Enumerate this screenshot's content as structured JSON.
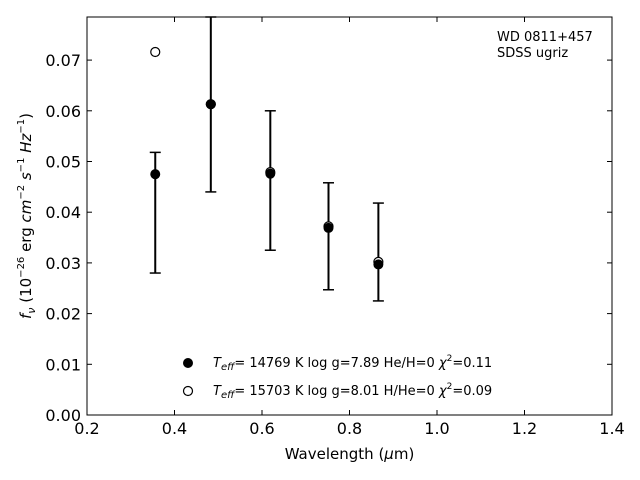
{
  "chart_data": {
    "type": "scatter",
    "xlabel": "Wavelength (μm)",
    "ylabel": "f_ν (10^-26 erg cm^-2 s^-1 Hz^-1)",
    "xlim": [
      0.2,
      1.4
    ],
    "ylim": [
      0.0,
      0.0785
    ],
    "xticks": [
      0.2,
      0.4,
      0.6,
      0.8,
      1.0,
      1.2,
      1.4
    ],
    "xtick_labels": [
      "0.2",
      "0.4",
      "0.6",
      "0.8",
      "1.0",
      "1.2",
      "1.4"
    ],
    "yticks": [
      0.0,
      0.01,
      0.02,
      0.03,
      0.04,
      0.05,
      0.06,
      0.07
    ],
    "ytick_labels": [
      "0.00",
      "0.01",
      "0.02",
      "0.03",
      "0.04",
      "0.05",
      "0.06",
      "0.07"
    ],
    "grid": false,
    "legend_position": "bottom-center",
    "annotation": [
      "WD 0811+457",
      "SDSS ugriz"
    ],
    "observed": {
      "x": [
        0.356,
        0.483,
        0.619,
        0.752,
        0.866
      ],
      "y": [
        0.0475,
        0.0615,
        0.0478,
        0.037,
        0.0298
      ],
      "yerr_low": [
        0.028,
        0.044,
        0.0325,
        0.0247,
        0.0225
      ],
      "yerr_high": [
        0.0518,
        0.0785,
        0.06,
        0.0458,
        0.0418
      ]
    },
    "series": [
      {
        "name": "T_eff= 14769 K  log g=7.89  He/H=0  χ²=0.11",
        "marker": "filled-circle",
        "x": [
          0.356,
          0.483,
          0.619,
          0.752,
          0.866
        ],
        "y": [
          0.0475,
          0.0613,
          0.0476,
          0.0369,
          0.0297
        ]
      },
      {
        "name": "T_eff= 15703 K  log g=8.01  H/He=0  χ²=0.09",
        "marker": "open-circle",
        "x": [
          0.356,
          0.483,
          0.619,
          0.752,
          0.866
        ],
        "y": [
          0.0716,
          0.0613,
          0.0479,
          0.0372,
          0.0302
        ]
      }
    ],
    "colors": {
      "marker": "#000000",
      "background": "#ffffff"
    }
  }
}
